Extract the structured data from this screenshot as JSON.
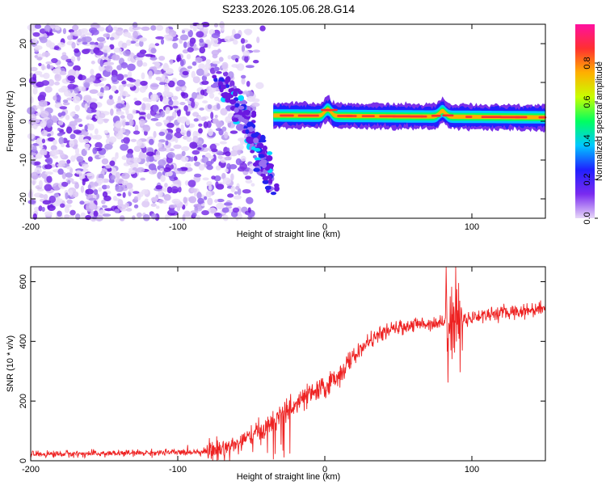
{
  "title": "S233.2026.105.06.28.G14",
  "chart_data": [
    {
      "type": "heatmap",
      "title": "S233.2026.105.06.28.G14",
      "xlabel": "Height of straight line (km)",
      "ylabel": "Frequency (Hz)",
      "xlim": [
        -200,
        150
      ],
      "ylim": [
        -25,
        25
      ],
      "xticks": [
        -200,
        -100,
        0,
        100
      ],
      "yticks": [
        -20,
        -10,
        0,
        10,
        20
      ],
      "colorbar": {
        "label": "Normalized spectral amplitude",
        "range": [
          0.0,
          1.0
        ],
        "ticks": [
          0.0,
          0.2,
          0.4,
          0.6,
          0.8
        ],
        "colors": [
          "#e8d8f8",
          "#7a2af0",
          "#2020ff",
          "#00c8ff",
          "#00ff60",
          "#c8ff00",
          "#ffb000",
          "#ff3030",
          "#ff10a0"
        ]
      },
      "features": {
        "noise_region_x": [
          -200,
          -65
        ],
        "descending_trace": {
          "x": [
            -72,
            -55,
            -45,
            -35
          ],
          "y": [
            10,
            2,
            -8,
            -16
          ]
        },
        "carrier_line": {
          "x": [
            -35,
            150
          ],
          "y": [
            1.5,
            1.0
          ]
        },
        "carrier_peaks": [
          {
            "x": 2,
            "y": 3.5
          },
          {
            "x": 80,
            "y": 3.0
          }
        ]
      }
    },
    {
      "type": "line",
      "xlabel": "Height of straight line (km)",
      "ylabel": "SNR (10 * v/v)",
      "xlim": [
        -200,
        150
      ],
      "ylim": [
        0,
        650
      ],
      "xticks": [
        -200,
        -100,
        0,
        100
      ],
      "yticks": [
        0,
        200,
        400,
        600
      ],
      "series": [
        {
          "name": "SNR",
          "color": "#ee2222",
          "trend": {
            "x": [
              -200,
              -150,
              -100,
              -80,
              -70,
              -60,
              -50,
              -40,
              -30,
              -20,
              -10,
              0,
              10,
              20,
              30,
              40,
              50,
              60,
              70,
              80,
              90,
              100,
              110,
              120,
              130,
              140,
              150
            ],
            "y": [
              22,
              24,
              28,
              32,
              40,
              55,
              80,
              110,
              150,
              190,
              220,
              245,
              290,
              350,
              400,
              430,
              445,
              455,
              460,
              465,
              470,
              480,
              490,
              495,
              500,
              505,
              515
            ]
          }
        }
      ]
    }
  ]
}
